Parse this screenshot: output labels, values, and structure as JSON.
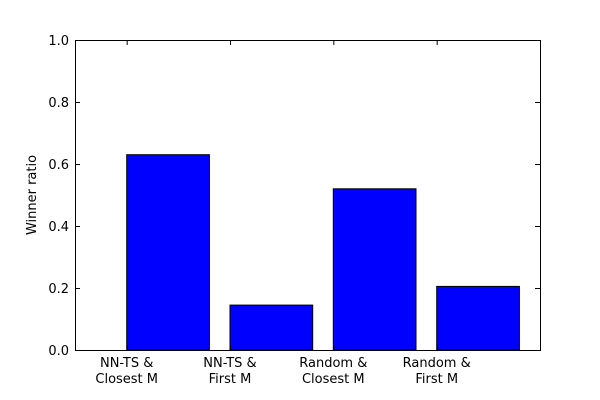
{
  "chart_data": {
    "type": "bar",
    "title": "",
    "xlabel": "",
    "ylabel": "Winner ratio",
    "categories": [
      [
        "NN-TS &",
        "Closest M"
      ],
      [
        "NN-TS &",
        "First M"
      ],
      [
        "Random &",
        "Closest M"
      ],
      [
        "Random &",
        "First M"
      ]
    ],
    "values": [
      0.63,
      0.145,
      0.52,
      0.205
    ],
    "ylim": [
      0,
      1.0
    ],
    "yticks": [
      0.0,
      0.2,
      0.4,
      0.6,
      0.8,
      1.0
    ],
    "ytick_labels": [
      "0.0",
      "0.2",
      "0.4",
      "0.6",
      "0.8",
      "1.0"
    ],
    "grid": false,
    "bar_color": "#0000ff",
    "edge_color": "#000000"
  }
}
